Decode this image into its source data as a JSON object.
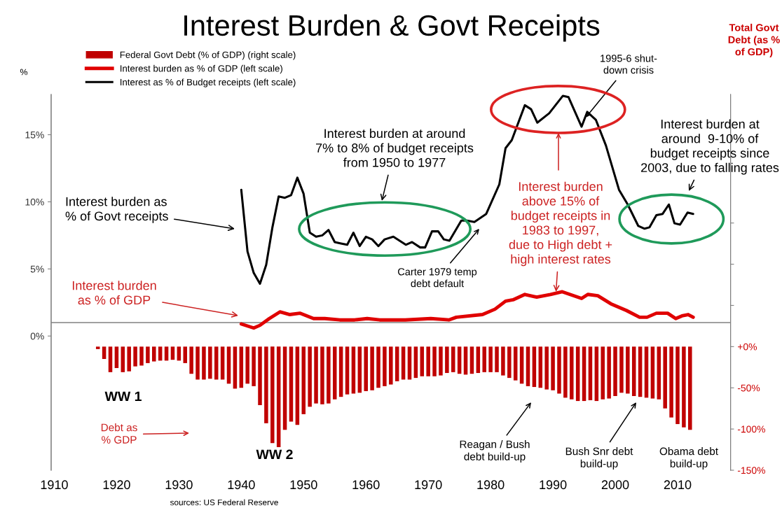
{
  "chart_data": {
    "type": "line",
    "title": "Interest Burden & Govt Receipts",
    "ylabel": "%",
    "y2label": "Total Govt\nDebt (as %\nof GDP)",
    "xlim": [
      1909.5,
      2018.5
    ],
    "xticks": [
      1910,
      1920,
      1930,
      1940,
      1950,
      1960,
      1970,
      1980,
      1990,
      2000,
      2010
    ],
    "ylim": [
      -10,
      18
    ],
    "yticks": [
      {
        "value": 0,
        "label": "0%"
      },
      {
        "value": 5,
        "label": "5%"
      },
      {
        "value": 10,
        "label": "10%"
      },
      {
        "value": 15,
        "label": "15%"
      }
    ],
    "y2lim": [
      -150,
      306
    ],
    "y2ticks": [
      {
        "value": -150,
        "label": "-150%"
      },
      {
        "value": -100,
        "label": "-100%"
      },
      {
        "value": -50,
        "label": "-50%"
      },
      {
        "value": 0,
        "label": "+0%"
      },
      {
        "value": 50,
        "label": null
      },
      {
        "value": 100,
        "label": null
      },
      {
        "value": 150,
        "label": null
      }
    ],
    "legend": "top left",
    "grid": false,
    "ref_lines": [
      {
        "axis": "y",
        "value": 1,
        "color": "#808080"
      }
    ],
    "series": [
      {
        "name": "Federal Govt Debt (% of GDP) (right scale)",
        "type": "bar",
        "axis": "y2",
        "color": "#c00000",
        "x": [
          1917,
          1918,
          1919,
          1920,
          1921,
          1922,
          1923,
          1924,
          1925,
          1926,
          1927,
          1928,
          1929,
          1930,
          1931,
          1932,
          1933,
          1934,
          1935,
          1936,
          1937,
          1938,
          1939,
          1940,
          1941,
          1942,
          1943,
          1944,
          1945,
          1946,
          1947,
          1948,
          1949,
          1950,
          1951,
          1952,
          1953,
          1954,
          1955,
          1956,
          1957,
          1958,
          1959,
          1960,
          1961,
          1962,
          1963,
          1964,
          1965,
          1966,
          1967,
          1968,
          1969,
          1970,
          1971,
          1972,
          1973,
          1974,
          1975,
          1976,
          1977,
          1978,
          1979,
          1980,
          1981,
          1982,
          1983,
          1984,
          1985,
          1986,
          1987,
          1988,
          1989,
          1990,
          1991,
          1992,
          1993,
          1994,
          1995,
          1996,
          1997,
          1998,
          1999,
          2000,
          2001,
          2002,
          2003,
          2004,
          2005,
          2006,
          2007,
          2008,
          2009,
          2010,
          2011,
          2012
        ],
        "values": [
          -3,
          -15,
          -31,
          -26,
          -31,
          -30,
          -24,
          -23,
          -20,
          -18,
          -17,
          -17,
          -16,
          -17,
          -20,
          -33,
          -40,
          -40,
          -39,
          -40,
          -40,
          -45,
          -51,
          -50,
          -45,
          -48,
          -71,
          -93,
          -117,
          -122,
          -101,
          -91,
          -95,
          -82,
          -73,
          -69,
          -70,
          -69,
          -64,
          -61,
          -58,
          -57,
          -56,
          -54,
          -53,
          -50,
          -48,
          -46,
          -42,
          -40,
          -40,
          -38,
          -36,
          -36,
          -36,
          -35,
          -32,
          -31,
          -33,
          -34,
          -33,
          -32,
          -31,
          -31,
          -31,
          -35,
          -38,
          -41,
          -45,
          -48,
          -49,
          -50,
          -52,
          -53,
          -57,
          -62,
          -64,
          -66,
          -66,
          -65,
          -66,
          -64,
          -63,
          -60,
          -56,
          -57,
          -60,
          -61,
          -62,
          -63,
          -64,
          -75,
          -86,
          -94,
          -98,
          -101
        ]
      },
      {
        "name": "Interest burden as % of GDP (left scale)",
        "color": "#e00000",
        "x": [
          1940,
          1942,
          1943,
          1944.5,
          1946.2,
          1947.8,
          1949.4,
          1951.6,
          1953.4,
          1955.8,
          1958.2,
          1960.2,
          1962.2,
          1966.3,
          1970.4,
          1973.3,
          1974.5,
          1978.7,
          1980.7,
          1982.4,
          1983.6,
          1985.5,
          1987.4,
          1989.6,
          1991.5,
          1994.6,
          1995.6,
          1997.2,
          1999.3,
          2001.8,
          2003.9,
          2005.1,
          2006.6,
          2008.4,
          2009.7,
          2010.7,
          2011.7,
          2012.5
        ],
        "values": [
          0.9,
          0.6,
          0.8,
          1.3,
          1.8,
          1.6,
          1.7,
          1.3,
          1.3,
          1.2,
          1.2,
          1.3,
          1.2,
          1.2,
          1.3,
          1.2,
          1.4,
          1.6,
          2.0,
          2.6,
          2.7,
          3.1,
          2.9,
          3.1,
          3.3,
          2.8,
          3.1,
          3.0,
          2.4,
          1.9,
          1.4,
          1.4,
          1.7,
          1.7,
          1.3,
          1.5,
          1.6,
          1.4
        ]
      },
      {
        "name": "Interest as % of Budget receipts (left scale)",
        "color": "#000000",
        "x": [
          1940,
          1941,
          1942,
          1943,
          1944,
          1945,
          1946,
          1947,
          1948,
          1949,
          1950,
          1951,
          1952,
          1953,
          1954,
          1955,
          1956,
          1957,
          1958,
          1959,
          1960,
          1961,
          1962,
          1963,
          1964.4,
          1966.4,
          1967.4,
          1968.7,
          1969.5,
          1970.6,
          1971.6,
          1972.5,
          1973.4,
          1975.3,
          1976.2,
          1977.4,
          1979.3,
          1981.4,
          1982.4,
          1983.4,
          1985.5,
          1986.5,
          1987.5,
          1989.4,
          1991.6,
          1992.5,
          1994.6,
          1995.5,
          1996.9,
          1998.5,
          2000.6,
          2002.0,
          2003.7,
          2004.7,
          2005.5,
          2006.6,
          2007.6,
          2008.6,
          2009.5,
          2010.4,
          2011.6,
          2012.5
        ],
        "values": [
          10.9,
          6.3,
          4.7,
          3.9,
          5.3,
          8.1,
          10.4,
          10.3,
          10.5,
          11.8,
          10.6,
          7.7,
          7.4,
          7.5,
          7.9,
          7.0,
          6.9,
          6.8,
          7.7,
          6.7,
          7.4,
          7.2,
          6.7,
          7.2,
          7.4,
          6.8,
          7.0,
          6.6,
          6.6,
          7.8,
          7.8,
          7.2,
          7.1,
          8.6,
          8.6,
          8.5,
          9.1,
          11.3,
          14.0,
          14.6,
          17.2,
          16.9,
          15.9,
          16.6,
          17.9,
          17.8,
          15.6,
          16.7,
          16.1,
          14.2,
          10.9,
          9.8,
          8.2,
          8.0,
          8.1,
          9.0,
          9.1,
          9.8,
          8.4,
          8.3,
          9.2,
          9.1
        ]
      }
    ],
    "annotations": [
      "Interest burden as\n% of Govt receipts",
      "Interest burden at around\n7% to 8% of budget receipts\nfrom 1950 to 1977",
      "Carter 1979 temp\ndebt default",
      {
        "text": "Interest burden\nabove 15% of\nbudget receipts in\n1983 to 1997,\ndue to High debt +\nhigh interest rates",
        "x": 1990.5,
        "y": 3.3
      },
      {
        "text": "1995-6 shut-\ndown crisis",
        "x": 1995.3,
        "y": 16.3
      },
      "Interest burden at\naround  9-10% of\nbudget receipts since\n2003, due to falling rates",
      "Interest burden\nas % of GDP",
      "WW 1",
      "WW 2",
      "Debt as\n% GDP",
      "Reagan / Bush\ndebt build-up",
      "Bush Snr debt\nbuild-up",
      "Obama debt\nbuild-up",
      "sources: US Federal Reserve"
    ]
  }
}
